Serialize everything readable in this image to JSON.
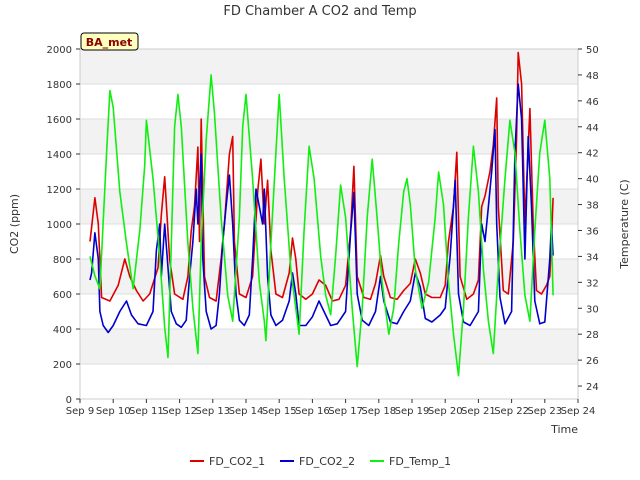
{
  "chart_data": {
    "type": "line",
    "title": "FD Chamber A CO2 and Temp",
    "xlabel": "Time",
    "ylabel_left": "CO2 (ppm)",
    "ylabel_right": "Temperature (C)",
    "site_label": "BA_met",
    "ylim_left": [
      0,
      2000
    ],
    "ylim_right": [
      23,
      50
    ],
    "yticks_left": [
      0,
      200,
      400,
      600,
      800,
      1000,
      1200,
      1400,
      1600,
      1800,
      2000
    ],
    "yticks_right": [
      24,
      26,
      28,
      30,
      32,
      34,
      36,
      38,
      40,
      42,
      44,
      46,
      48,
      50
    ],
    "xlim": [
      9,
      24
    ],
    "xticks": [
      {
        "x": 9,
        "label": "Sep 9"
      },
      {
        "x": 10,
        "label": "Sep 10"
      },
      {
        "x": 11,
        "label": "Sep 11"
      },
      {
        "x": 12,
        "label": "Sep 12"
      },
      {
        "x": 13,
        "label": "Sep 13"
      },
      {
        "x": 14,
        "label": "Sep 14"
      },
      {
        "x": 15,
        "label": "Sep 15"
      },
      {
        "x": 16,
        "label": "Sep 16"
      },
      {
        "x": 17,
        "label": "Sep 17"
      },
      {
        "x": 18,
        "label": "Sep 18"
      },
      {
        "x": 19,
        "label": "Sep 19"
      },
      {
        "x": 20,
        "label": "Sep 20"
      },
      {
        "x": 21,
        "label": "Sep 21"
      },
      {
        "x": 22,
        "label": "Sep 22"
      },
      {
        "x": 23,
        "label": "Sep 23"
      },
      {
        "x": 24,
        "label": "Sep 24"
      }
    ],
    "grid": true,
    "legend_position": "bottom",
    "series": [
      {
        "name": "FD_CO2_1",
        "color": "#dd0000",
        "axis": "left",
        "points": [
          [
            9.3,
            900
          ],
          [
            9.45,
            1150
          ],
          [
            9.55,
            1000
          ],
          [
            9.65,
            580
          ],
          [
            9.9,
            560
          ],
          [
            10.15,
            650
          ],
          [
            10.35,
            800
          ],
          [
            10.5,
            700
          ],
          [
            10.7,
            620
          ],
          [
            10.9,
            560
          ],
          [
            11.1,
            600
          ],
          [
            11.35,
            750
          ],
          [
            11.45,
            1050
          ],
          [
            11.55,
            1270
          ],
          [
            11.7,
            800
          ],
          [
            11.85,
            600
          ],
          [
            12.1,
            570
          ],
          [
            12.25,
            700
          ],
          [
            12.35,
            960
          ],
          [
            12.45,
            1100
          ],
          [
            12.55,
            1440
          ],
          [
            12.6,
            900
          ],
          [
            12.65,
            1600
          ],
          [
            12.75,
            700
          ],
          [
            12.9,
            580
          ],
          [
            13.1,
            560
          ],
          [
            13.25,
            800
          ],
          [
            13.35,
            1000
          ],
          [
            13.5,
            1400
          ],
          [
            13.6,
            1500
          ],
          [
            13.65,
            900
          ],
          [
            13.8,
            600
          ],
          [
            14.0,
            580
          ],
          [
            14.2,
            700
          ],
          [
            14.35,
            1180
          ],
          [
            14.45,
            1370
          ],
          [
            14.55,
            1000
          ],
          [
            14.65,
            1250
          ],
          [
            14.75,
            850
          ],
          [
            14.9,
            600
          ],
          [
            15.1,
            580
          ],
          [
            15.3,
            720
          ],
          [
            15.4,
            920
          ],
          [
            15.5,
            800
          ],
          [
            15.6,
            600
          ],
          [
            15.8,
            570
          ],
          [
            16.0,
            600
          ],
          [
            16.2,
            680
          ],
          [
            16.4,
            650
          ],
          [
            16.6,
            560
          ],
          [
            16.8,
            570
          ],
          [
            17.0,
            650
          ],
          [
            17.15,
            960
          ],
          [
            17.25,
            1330
          ],
          [
            17.35,
            700
          ],
          [
            17.55,
            580
          ],
          [
            17.75,
            570
          ],
          [
            17.9,
            660
          ],
          [
            18.05,
            820
          ],
          [
            18.15,
            700
          ],
          [
            18.35,
            580
          ],
          [
            18.55,
            570
          ],
          [
            18.75,
            620
          ],
          [
            18.95,
            660
          ],
          [
            19.1,
            800
          ],
          [
            19.25,
            720
          ],
          [
            19.4,
            600
          ],
          [
            19.6,
            580
          ],
          [
            19.85,
            580
          ],
          [
            20.0,
            650
          ],
          [
            20.1,
            900
          ],
          [
            20.25,
            1100
          ],
          [
            20.35,
            1410
          ],
          [
            20.45,
            700
          ],
          [
            20.65,
            570
          ],
          [
            20.85,
            600
          ],
          [
            21.0,
            680
          ],
          [
            21.1,
            1100
          ],
          [
            21.2,
            1160
          ],
          [
            21.35,
            1300
          ],
          [
            21.45,
            1450
          ],
          [
            21.55,
            1720
          ],
          [
            21.6,
            1100
          ],
          [
            21.75,
            620
          ],
          [
            21.9,
            600
          ],
          [
            22.05,
            900
          ],
          [
            22.15,
            1500
          ],
          [
            22.2,
            1980
          ],
          [
            22.3,
            1800
          ],
          [
            22.4,
            1000
          ],
          [
            22.55,
            1660
          ],
          [
            22.65,
            1000
          ],
          [
            22.75,
            620
          ],
          [
            22.9,
            600
          ],
          [
            23.05,
            650
          ],
          [
            23.15,
            700
          ],
          [
            23.2,
            900
          ],
          [
            23.25,
            1150
          ]
        ]
      },
      {
        "name": "FD_CO2_2",
        "color": "#0000cc",
        "axis": "left",
        "points": [
          [
            9.3,
            680
          ],
          [
            9.35,
            720
          ],
          [
            9.45,
            950
          ],
          [
            9.55,
            800
          ],
          [
            9.6,
            500
          ],
          [
            9.7,
            420
          ],
          [
            9.85,
            380
          ],
          [
            10.0,
            420
          ],
          [
            10.2,
            500
          ],
          [
            10.4,
            560
          ],
          [
            10.55,
            480
          ],
          [
            10.75,
            430
          ],
          [
            11.0,
            420
          ],
          [
            11.2,
            500
          ],
          [
            11.3,
            850
          ],
          [
            11.4,
            1000
          ],
          [
            11.45,
            700
          ],
          [
            11.55,
            1000
          ],
          [
            11.65,
            750
          ],
          [
            11.75,
            500
          ],
          [
            11.9,
            430
          ],
          [
            12.05,
            410
          ],
          [
            12.2,
            450
          ],
          [
            12.3,
            700
          ],
          [
            12.4,
            900
          ],
          [
            12.5,
            1200
          ],
          [
            12.55,
            1000
          ],
          [
            12.65,
            1400
          ],
          [
            12.7,
            800
          ],
          [
            12.8,
            500
          ],
          [
            12.95,
            400
          ],
          [
            13.1,
            420
          ],
          [
            13.2,
            600
          ],
          [
            13.3,
            900
          ],
          [
            13.4,
            1100
          ],
          [
            13.5,
            1280
          ],
          [
            13.6,
            1000
          ],
          [
            13.7,
            600
          ],
          [
            13.8,
            450
          ],
          [
            13.95,
            420
          ],
          [
            14.1,
            480
          ],
          [
            14.2,
            800
          ],
          [
            14.3,
            1200
          ],
          [
            14.4,
            1100
          ],
          [
            14.5,
            1000
          ],
          [
            14.55,
            1200
          ],
          [
            14.65,
            700
          ],
          [
            14.75,
            480
          ],
          [
            14.9,
            420
          ],
          [
            15.1,
            450
          ],
          [
            15.3,
            560
          ],
          [
            15.4,
            720
          ],
          [
            15.5,
            600
          ],
          [
            15.6,
            420
          ],
          [
            15.8,
            420
          ],
          [
            16.0,
            470
          ],
          [
            16.2,
            560
          ],
          [
            16.35,
            500
          ],
          [
            16.55,
            420
          ],
          [
            16.75,
            430
          ],
          [
            17.0,
            500
          ],
          [
            17.15,
            950
          ],
          [
            17.25,
            1180
          ],
          [
            17.35,
            600
          ],
          [
            17.5,
            450
          ],
          [
            17.7,
            420
          ],
          [
            17.9,
            500
          ],
          [
            18.05,
            700
          ],
          [
            18.15,
            560
          ],
          [
            18.35,
            440
          ],
          [
            18.55,
            430
          ],
          [
            18.75,
            500
          ],
          [
            18.95,
            560
          ],
          [
            19.1,
            720
          ],
          [
            19.25,
            640
          ],
          [
            19.4,
            460
          ],
          [
            19.6,
            440
          ],
          [
            19.85,
            480
          ],
          [
            20.0,
            520
          ],
          [
            20.15,
            820
          ],
          [
            20.3,
            1250
          ],
          [
            20.4,
            600
          ],
          [
            20.55,
            440
          ],
          [
            20.75,
            420
          ],
          [
            21.0,
            500
          ],
          [
            21.1,
            1000
          ],
          [
            21.2,
            900
          ],
          [
            21.3,
            1100
          ],
          [
            21.4,
            1300
          ],
          [
            21.5,
            1540
          ],
          [
            21.55,
            1000
          ],
          [
            21.65,
            580
          ],
          [
            21.8,
            430
          ],
          [
            22.0,
            500
          ],
          [
            22.1,
            1400
          ],
          [
            22.2,
            1800
          ],
          [
            22.3,
            1600
          ],
          [
            22.4,
            800
          ],
          [
            22.5,
            1500
          ],
          [
            22.6,
            1100
          ],
          [
            22.7,
            560
          ],
          [
            22.85,
            430
          ],
          [
            23.0,
            440
          ],
          [
            23.15,
            800
          ],
          [
            23.2,
            1000
          ],
          [
            23.25,
            820
          ]
        ]
      },
      {
        "name": "FD_Temp_1",
        "color": "#11ee11",
        "axis": "right",
        "points": [
          [
            9.3,
            34.0
          ],
          [
            9.45,
            32.5
          ],
          [
            9.6,
            31.5
          ],
          [
            9.8,
            42.0
          ],
          [
            9.9,
            46.8
          ],
          [
            10.0,
            45.5
          ],
          [
            10.2,
            39.0
          ],
          [
            10.4,
            35.0
          ],
          [
            10.6,
            31.5
          ],
          [
            10.8,
            36.0
          ],
          [
            10.95,
            41.0
          ],
          [
            11.0,
            44.5
          ],
          [
            11.2,
            40.0
          ],
          [
            11.4,
            34.0
          ],
          [
            11.55,
            28.5
          ],
          [
            11.65,
            26.2
          ],
          [
            11.75,
            35.0
          ],
          [
            11.85,
            44.0
          ],
          [
            11.95,
            46.5
          ],
          [
            12.05,
            44.0
          ],
          [
            12.25,
            35.0
          ],
          [
            12.4,
            30.0
          ],
          [
            12.55,
            26.5
          ],
          [
            12.65,
            35.0
          ],
          [
            12.8,
            43.0
          ],
          [
            12.95,
            48.0
          ],
          [
            13.05,
            45.0
          ],
          [
            13.25,
            37.0
          ],
          [
            13.45,
            31.0
          ],
          [
            13.6,
            29.0
          ],
          [
            13.8,
            37.0
          ],
          [
            13.9,
            44.0
          ],
          [
            14.0,
            46.5
          ],
          [
            14.2,
            40.0
          ],
          [
            14.4,
            32.0
          ],
          [
            14.55,
            29.0
          ],
          [
            14.6,
            27.5
          ],
          [
            14.75,
            35.0
          ],
          [
            14.9,
            42.0
          ],
          [
            15.0,
            46.5
          ],
          [
            15.15,
            40.0
          ],
          [
            15.35,
            33.0
          ],
          [
            15.5,
            30.0
          ],
          [
            15.6,
            28.0
          ],
          [
            15.75,
            36.0
          ],
          [
            15.9,
            42.5
          ],
          [
            16.05,
            40.0
          ],
          [
            16.25,
            34.0
          ],
          [
            16.4,
            31.0
          ],
          [
            16.55,
            29.5
          ],
          [
            16.7,
            34.0
          ],
          [
            16.85,
            39.5
          ],
          [
            17.0,
            37.0
          ],
          [
            17.2,
            30.0
          ],
          [
            17.35,
            25.5
          ],
          [
            17.5,
            30.0
          ],
          [
            17.65,
            37.0
          ],
          [
            17.8,
            41.5
          ],
          [
            17.95,
            37.0
          ],
          [
            18.1,
            32.0
          ],
          [
            18.3,
            28.0
          ],
          [
            18.45,
            30.0
          ],
          [
            18.6,
            35.0
          ],
          [
            18.75,
            39.0
          ],
          [
            18.85,
            40.0
          ],
          [
            18.95,
            38.0
          ],
          [
            19.1,
            33.0
          ],
          [
            19.3,
            30.0
          ],
          [
            19.5,
            32.0
          ],
          [
            19.7,
            37.0
          ],
          [
            19.8,
            40.5
          ],
          [
            19.95,
            38.0
          ],
          [
            20.1,
            32.0
          ],
          [
            20.25,
            28.0
          ],
          [
            20.4,
            24.8
          ],
          [
            20.55,
            30.0
          ],
          [
            20.7,
            37.0
          ],
          [
            20.85,
            42.5
          ],
          [
            21.0,
            39.0
          ],
          [
            21.15,
            33.0
          ],
          [
            21.3,
            29.0
          ],
          [
            21.45,
            26.5
          ],
          [
            21.6,
            33.0
          ],
          [
            21.8,
            40.0
          ],
          [
            21.95,
            44.5
          ],
          [
            22.1,
            42.0
          ],
          [
            22.25,
            36.0
          ],
          [
            22.4,
            31.0
          ],
          [
            22.55,
            29.0
          ],
          [
            22.7,
            36.0
          ],
          [
            22.85,
            42.0
          ],
          [
            23.0,
            44.5
          ],
          [
            23.15,
            40.0
          ],
          [
            23.25,
            31.0
          ]
        ]
      }
    ]
  }
}
